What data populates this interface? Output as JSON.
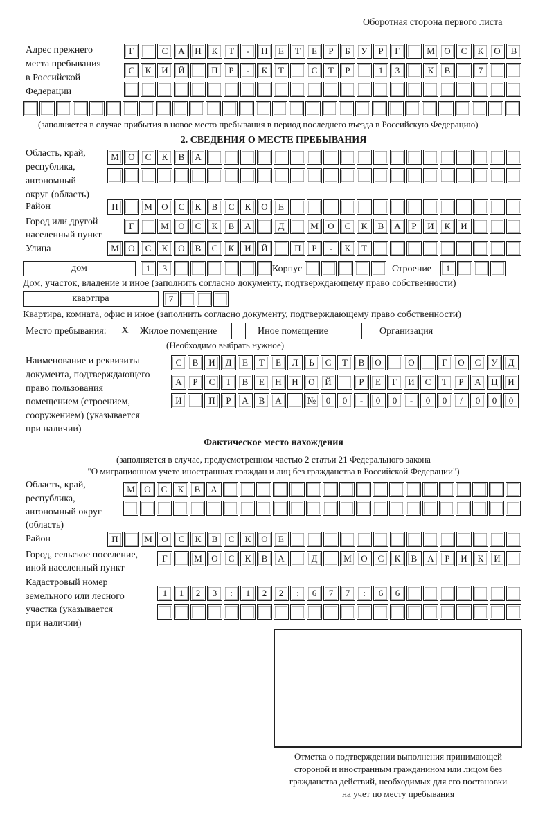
{
  "header": {
    "page_note": "Оборотная сторона первого листа"
  },
  "previous_address": {
    "label": [
      "Адрес прежнего",
      "места пребывания",
      "в Российской",
      "Федерации"
    ],
    "rows": [
      "Г САНКТ-ПЕТЕРБУРГ МОСКОВ",
      "СКИЙ ПР-КТ СТР 13 КВ 7  ",
      "                        ",
      "                              "
    ],
    "note": "(заполняется в случае прибытия в новое место пребывания в период последнего въезда в Российскую Федерацию)"
  },
  "section2": {
    "title": "2. СВЕДЕНИЯ О МЕСТЕ ПРЕБЫВАНИЯ",
    "region": {
      "label": [
        "Область, край,",
        "республика,",
        "автономный",
        "округ (область)"
      ],
      "rows": [
        "МОСКВА                   ",
        "                         "
      ]
    },
    "district": {
      "label": "Район",
      "row": "П МОСКВСКОЕ              "
    },
    "city": {
      "label": [
        "Город или другой",
        "населенный пункт"
      ],
      "row": "Г МОСКВА Д МОСКВАРИКИ   "
    },
    "street": {
      "label": "Улица",
      "row": "МОСКОВСКИЙ ПР-КТ         "
    },
    "house": {
      "type": "дом",
      "number": "13      ",
      "korpus_label": "Корпус",
      "korpus": "     ",
      "stroenie_label": "Строение",
      "stroenie": "1   ",
      "note": "Дом, участок, владение и иное (заполнить согласно документу, подтверждающему право собственности)"
    },
    "apartment": {
      "type": "квартпра",
      "number": "7   ",
      "note": "Квартира, комната, офис и иное (заполнить согласно документу, подтверждающему право собственности)"
    },
    "place_type": {
      "label": "Место пребывания:",
      "options": [
        {
          "label": "Жилое помещение",
          "mark": "X"
        },
        {
          "label": "Иное помещение",
          "mark": ""
        },
        {
          "label": "Организация",
          "mark": ""
        }
      ],
      "hint": "(Необходимо выбрать нужное)"
    },
    "document": {
      "label": [
        "Наименование и реквизиты",
        "документа, подтверждающего",
        "право пользования",
        "помещением (строением,",
        "сооружением) (указывается",
        "при наличии)"
      ],
      "rows": [
        "СВИДЕТЕЛЬСТВО О ГОСУД",
        "АРСТВЕННОЙ РЕГИСТРАЦИ",
        "И ПРАВА №00-00-00/000"
      ]
    }
  },
  "actual": {
    "title": "Фактическое место нахождения",
    "note": [
      "(заполняется в случае, предусмотренном частью 2 статьи 21 Федерального закона",
      "\"О миграционном учете иностранных граждан и лиц без гражданства в Российской Федерации\")"
    ],
    "region": {
      "label": [
        "Область, край,",
        "республика,",
        "автономный округ",
        "(область)"
      ],
      "rows": [
        "МОСКВА                  ",
        "                        "
      ]
    },
    "district": {
      "label": "Район",
      "row": "П МОСКВСКОЕ              "
    },
    "city": {
      "label": [
        "Город, сельское поселение,",
        "иной населенный пункт"
      ],
      "row": "Г МОСКВА Д МОСКВАРИКИ "
    },
    "cadastral": {
      "label": [
        "Кадастровый номер",
        "земельного или лесного",
        "участка (указывается",
        "при наличии)"
      ],
      "rows": [
        "1123:122:677:66       ",
        "                      "
      ]
    }
  },
  "stamp_box": {
    "caption": [
      "Отметка о подтверждении выполнения принимающей",
      "стороной и иностранным гражданином или лицом без",
      "гражданства действий, необходимых для его постановки",
      "на учет по месту пребывания"
    ]
  }
}
